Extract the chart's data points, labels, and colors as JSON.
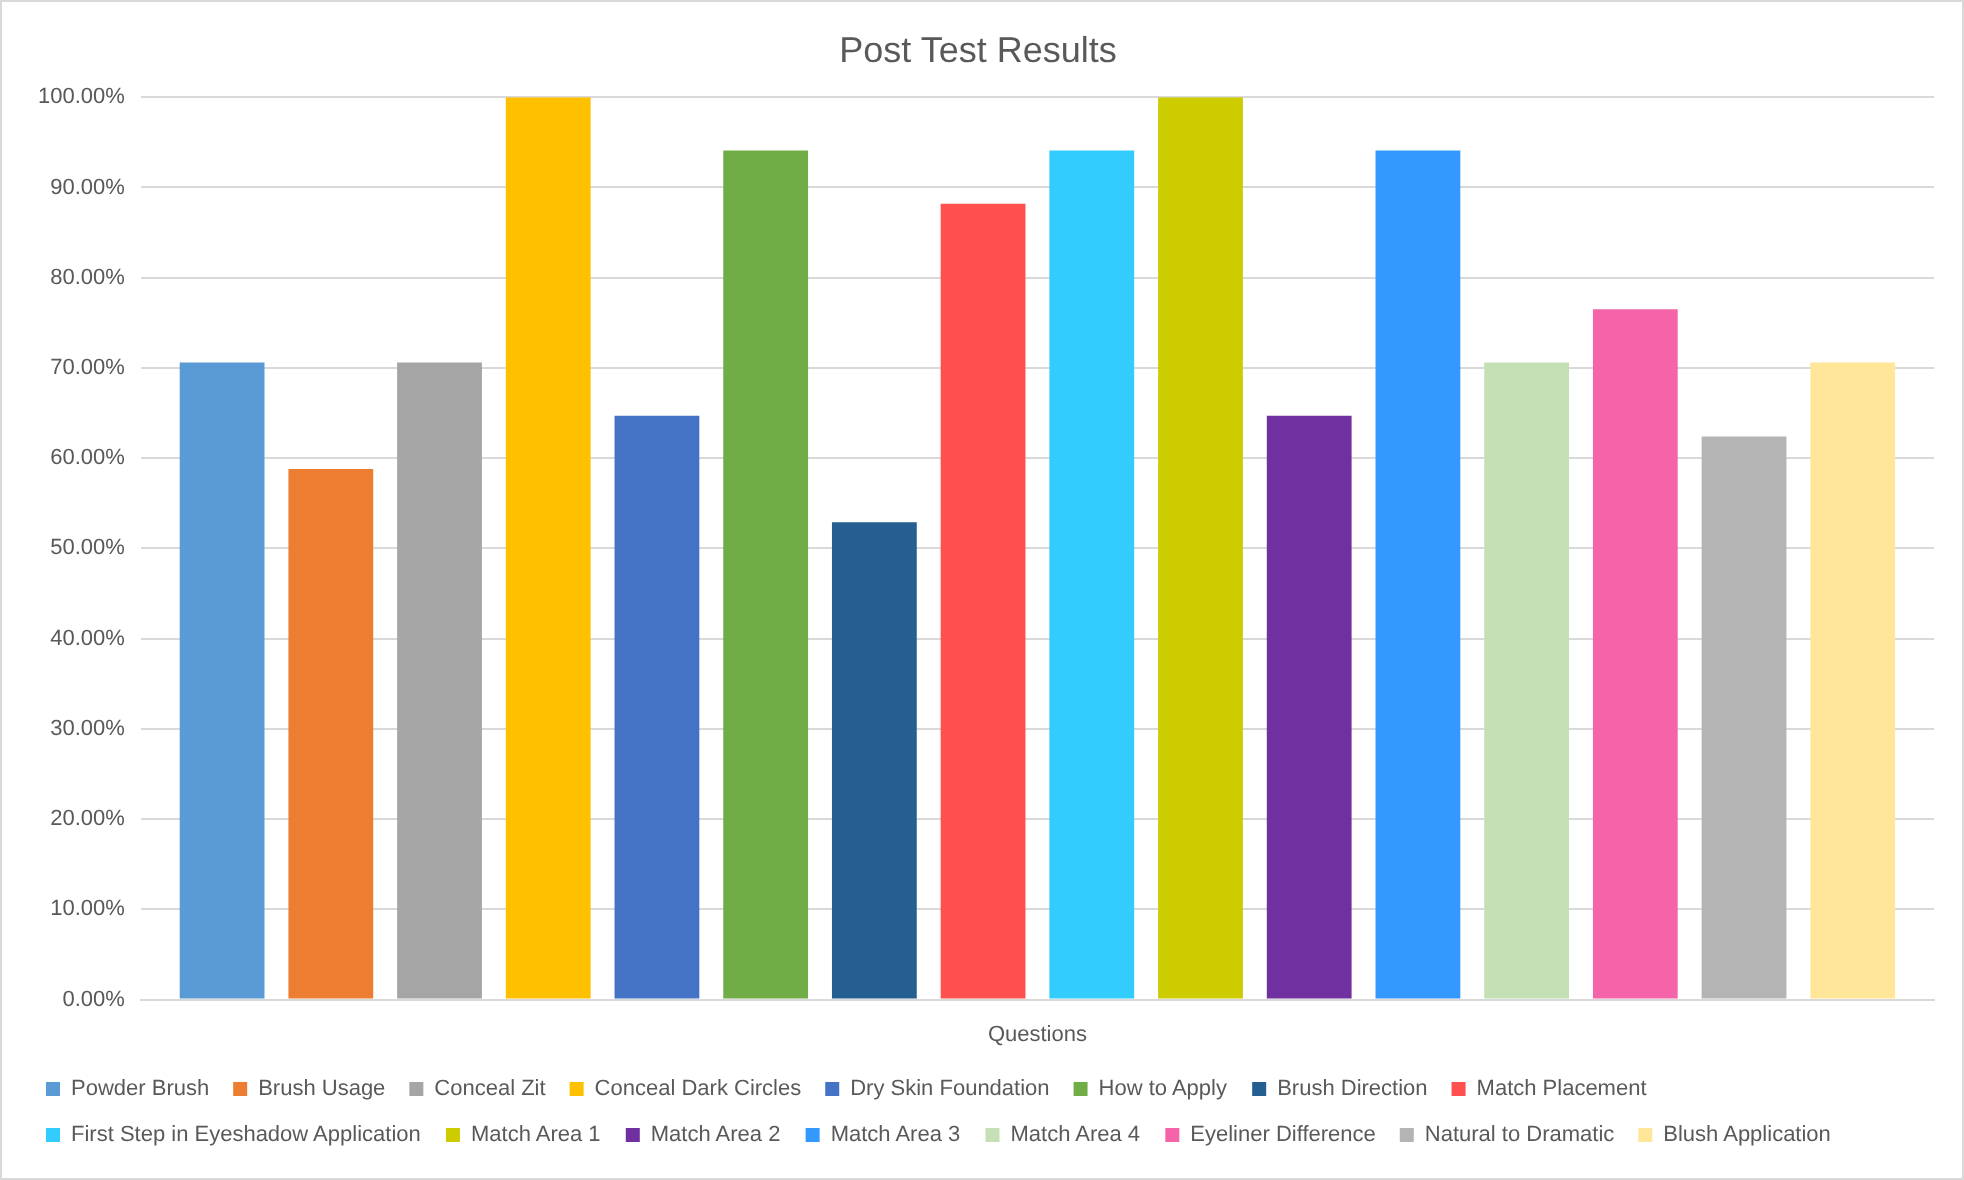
{
  "chart_data": {
    "type": "bar",
    "title": "Post Test Results",
    "categories": [
      "Questions"
    ],
    "ylim": [
      0,
      100
    ],
    "yticks": [
      {
        "value": 0,
        "label": "0.00%"
      },
      {
        "value": 10,
        "label": "10.00%"
      },
      {
        "value": 20,
        "label": "20.00%"
      },
      {
        "value": 30,
        "label": "30.00%"
      },
      {
        "value": 40,
        "label": "40.00%"
      },
      {
        "value": 50,
        "label": "50.00%"
      },
      {
        "value": 60,
        "label": "60.00%"
      },
      {
        "value": 70,
        "label": "70.00%"
      },
      {
        "value": 80,
        "label": "80.00%"
      },
      {
        "value": 90,
        "label": "90.00%"
      },
      {
        "value": 100,
        "label": "100.00%"
      }
    ],
    "grid": "y",
    "legend": "bottom",
    "series": [
      {
        "name": "Powder Brush",
        "color": "#5b9bd5",
        "values": [
          70.6
        ]
      },
      {
        "name": "Brush Usage",
        "color": "#ed7d31",
        "values": [
          58.8
        ]
      },
      {
        "name": "Conceal Zit",
        "color": "#a5a5a5",
        "values": [
          70.6
        ]
      },
      {
        "name": "Conceal Dark Circles",
        "color": "#ffc000",
        "values": [
          100
        ]
      },
      {
        "name": "Dry Skin Foundation",
        "color": "#4472c4",
        "values": [
          64.7
        ]
      },
      {
        "name": "How to Apply",
        "color": "#70ad47",
        "values": [
          94.1
        ]
      },
      {
        "name": "Brush Direction",
        "color": "#255e91",
        "values": [
          52.9
        ]
      },
      {
        "name": "Match Placement",
        "color": "#ff5050",
        "values": [
          88.2
        ]
      },
      {
        "name": "First Step in Eyeshadow Application",
        "color": "#33ccff",
        "values": [
          94.1
        ]
      },
      {
        "name": "Match Area 1",
        "color": "#cccc00",
        "values": [
          100
        ]
      },
      {
        "name": "Match Area 2",
        "color": "#7030a0",
        "values": [
          64.7
        ]
      },
      {
        "name": "Match Area 3",
        "color": "#3399ff",
        "values": [
          94.1
        ]
      },
      {
        "name": "Match Area 4",
        "color": "#c5e0b4",
        "values": [
          70.6
        ]
      },
      {
        "name": "Eyeliner Difference",
        "color": "#f564a9",
        "values": [
          76.5
        ]
      },
      {
        "name": "Natural to Dramatic",
        "color": "#b4b4b4",
        "values": [
          62.4
        ]
      },
      {
        "name": "Blush Application",
        "color": "#ffe699",
        "values": [
          70.6
        ]
      }
    ]
  }
}
